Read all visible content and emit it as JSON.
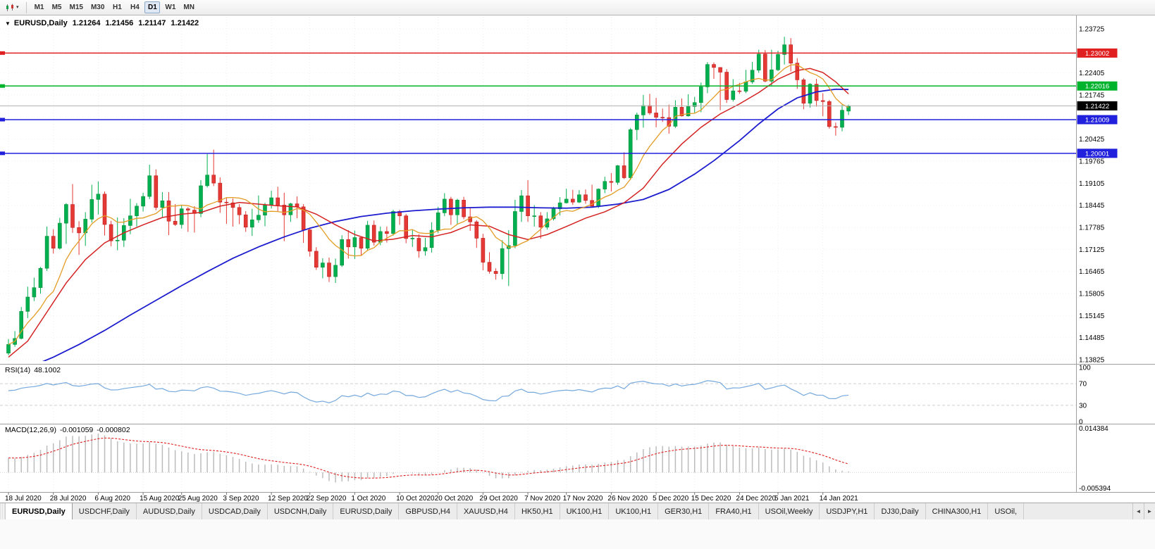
{
  "icons": {
    "collapse_triangle": "▼",
    "toolbar_caret": "▾",
    "tab_scroll_left": "◄",
    "tab_scroll_right": "►"
  },
  "toolbar": {
    "timeframes": [
      "M1",
      "M5",
      "M15",
      "M30",
      "H1",
      "H4",
      "D1",
      "W1",
      "MN"
    ],
    "active_timeframe": "D1"
  },
  "chart": {
    "symbol": "EURUSD,Daily",
    "open": "1.21264",
    "high": "1.21456",
    "low": "1.21147",
    "close": "1.21422"
  },
  "indicators": {
    "rsi": {
      "title": "RSI(14)",
      "value": "48.1002"
    },
    "macd": {
      "title": "MACD(12,26,9)",
      "value_main": "-0.001059",
      "value_signal": "-0.000802"
    }
  },
  "colors": {
    "up_candle": "#00b050",
    "up_stroke": "#089038",
    "down_candle": "#e53935",
    "down_stroke": "#bf2020",
    "ma_fast": "#e39c24",
    "ma_mid": "#d42222",
    "ma_slow": "#1d1dcf",
    "rsi_line": "#76a9dd",
    "macd_bar": "#bcbcbc",
    "macd_signal": "#e02020",
    "grid": "#ededed",
    "separator": "#9f9f9f",
    "axis_text": "#000000",
    "price_line": "#b0b0b0"
  },
  "chart_data": {
    "type": "candlestick",
    "symbol": "EURUSD",
    "timeframe": "Daily",
    "price_axis": {
      "min": 1.13825,
      "max": 1.24,
      "ticks": [
        1.23725,
        1.23065,
        1.22405,
        1.21745,
        1.21085,
        1.20425,
        1.19765,
        1.19105,
        1.18445,
        1.17785,
        1.17125,
        1.16465,
        1.15805,
        1.15145,
        1.14485,
        1.13825
      ]
    },
    "hlines": [
      {
        "price": 1.23002,
        "label": "1.23002",
        "color": "#e02020"
      },
      {
        "price": 1.22016,
        "label": "1.22016",
        "color": "#00b32c"
      },
      {
        "price": 1.21009,
        "label": "1.21009",
        "color": "#2121dd"
      },
      {
        "price": 1.20001,
        "label": "1.20001",
        "color": "#2121dd"
      }
    ],
    "current_price": {
      "price": 1.21422,
      "label": "1.21422",
      "badge_color": "#000000"
    },
    "x_labels": [
      [
        0,
        "18 Jul 2020"
      ],
      [
        7,
        "28 Jul 2020"
      ],
      [
        14,
        "6 Aug 2020"
      ],
      [
        21,
        "15 Aug 2020"
      ],
      [
        27,
        "25 Aug 2020"
      ],
      [
        34,
        "3 Sep 2020"
      ],
      [
        41,
        "12 Sep 2020"
      ],
      [
        47,
        "22 Sep 2020"
      ],
      [
        54,
        "1 Oct 2020"
      ],
      [
        61,
        "10 Oct 2020"
      ],
      [
        67,
        "20 Oct 2020"
      ],
      [
        74,
        "29 Oct 2020"
      ],
      [
        81,
        "7 Nov 2020"
      ],
      [
        87,
        "17 Nov 2020"
      ],
      [
        94,
        "26 Nov 2020"
      ],
      [
        101,
        "5 Dec 2020"
      ],
      [
        107,
        "15 Dec 2020"
      ],
      [
        114,
        "24 Dec 2020"
      ],
      [
        120,
        "5 Jan 2021"
      ],
      [
        127,
        "14 Jan 2021"
      ]
    ],
    "candles": [
      [
        1.1402,
        1.1444,
        1.1396,
        1.1428
      ],
      [
        1.1428,
        1.1468,
        1.1421,
        1.1446
      ],
      [
        1.1446,
        1.154,
        1.1443,
        1.1527
      ],
      [
        1.1527,
        1.1601,
        1.1507,
        1.157
      ],
      [
        1.157,
        1.1628,
        1.1558,
        1.1598
      ],
      [
        1.1598,
        1.166,
        1.158,
        1.1656
      ],
      [
        1.1656,
        1.1781,
        1.1648,
        1.1752
      ],
      [
        1.1752,
        1.1773,
        1.17,
        1.1716
      ],
      [
        1.1716,
        1.1807,
        1.1712,
        1.1791
      ],
      [
        1.1791,
        1.1851,
        1.1729,
        1.1847
      ],
      [
        1.1847,
        1.1908,
        1.1762,
        1.1778
      ],
      [
        1.1778,
        1.1797,
        1.1696,
        1.1762
      ],
      [
        1.1762,
        1.1824,
        1.1723,
        1.1803
      ],
      [
        1.1803,
        1.1906,
        1.1793,
        1.1862
      ],
      [
        1.1862,
        1.1916,
        1.1817,
        1.1878
      ],
      [
        1.1878,
        1.1886,
        1.1754,
        1.1787
      ],
      [
        1.1787,
        1.1798,
        1.1722,
        1.1738
      ],
      [
        1.1738,
        1.1808,
        1.171,
        1.174
      ],
      [
        1.174,
        1.1806,
        1.172,
        1.1784
      ],
      [
        1.1784,
        1.1864,
        1.1758,
        1.1813
      ],
      [
        1.1813,
        1.1851,
        1.1781,
        1.1842
      ],
      [
        1.1842,
        1.1882,
        1.1826,
        1.1871
      ],
      [
        1.1871,
        1.1966,
        1.1863,
        1.1933
      ],
      [
        1.1933,
        1.1952,
        1.183,
        1.1838
      ],
      [
        1.1838,
        1.1884,
        1.1808,
        1.1858
      ],
      [
        1.1858,
        1.1884,
        1.1755,
        1.1797
      ],
      [
        1.1797,
        1.1848,
        1.1783,
        1.1787
      ],
      [
        1.1787,
        1.1845,
        1.1775,
        1.1834
      ],
      [
        1.1834,
        1.1839,
        1.1765,
        1.183
      ],
      [
        1.183,
        1.1842,
        1.1763,
        1.182
      ],
      [
        1.182,
        1.192,
        1.1809,
        1.1903
      ],
      [
        1.1903,
        1.1998,
        1.1898,
        1.1935
      ],
      [
        1.1935,
        1.2011,
        1.1902,
        1.1911
      ],
      [
        1.1911,
        1.1928,
        1.1822,
        1.1854
      ],
      [
        1.1854,
        1.1868,
        1.1789,
        1.1852
      ],
      [
        1.1852,
        1.1865,
        1.1781,
        1.1838
      ],
      [
        1.1838,
        1.1848,
        1.1788,
        1.1816
      ],
      [
        1.1816,
        1.1827,
        1.1765,
        1.1779
      ],
      [
        1.1779,
        1.1834,
        1.1753,
        1.1801
      ],
      [
        1.1801,
        1.1874,
        1.1792,
        1.1815
      ],
      [
        1.1815,
        1.1852,
        1.1782,
        1.1845
      ],
      [
        1.1845,
        1.1888,
        1.1835,
        1.1867
      ],
      [
        1.1867,
        1.19,
        1.1827,
        1.1845
      ],
      [
        1.1845,
        1.1882,
        1.1737,
        1.1816
      ],
      [
        1.1816,
        1.1852,
        1.1795,
        1.1849
      ],
      [
        1.1849,
        1.1871,
        1.1806,
        1.184
      ],
      [
        1.184,
        1.1848,
        1.1732,
        1.1771
      ],
      [
        1.1771,
        1.1778,
        1.1691,
        1.1707
      ],
      [
        1.1707,
        1.1719,
        1.1651,
        1.1659
      ],
      [
        1.1659,
        1.1686,
        1.1626,
        1.1672
      ],
      [
        1.1672,
        1.1688,
        1.1615,
        1.1631
      ],
      [
        1.1631,
        1.1685,
        1.1612,
        1.1665
      ],
      [
        1.1665,
        1.1755,
        1.166,
        1.1742
      ],
      [
        1.1742,
        1.177,
        1.1685,
        1.172
      ],
      [
        1.172,
        1.1769,
        1.1684,
        1.1748
      ],
      [
        1.1748,
        1.175,
        1.1695,
        1.1716
      ],
      [
        1.1716,
        1.1798,
        1.1708,
        1.1785
      ],
      [
        1.1785,
        1.1799,
        1.1724,
        1.1734
      ],
      [
        1.1734,
        1.1781,
        1.1725,
        1.1766
      ],
      [
        1.1766,
        1.1781,
        1.1733,
        1.176
      ],
      [
        1.176,
        1.1831,
        1.1754,
        1.1826
      ],
      [
        1.1826,
        1.1831,
        1.1786,
        1.1813
      ],
      [
        1.1813,
        1.1819,
        1.1731,
        1.1745
      ],
      [
        1.1745,
        1.1772,
        1.172,
        1.1746
      ],
      [
        1.1746,
        1.1758,
        1.1688,
        1.1708
      ],
      [
        1.1708,
        1.1747,
        1.1694,
        1.1718
      ],
      [
        1.1718,
        1.1794,
        1.1703,
        1.177
      ],
      [
        1.177,
        1.184,
        1.1761,
        1.1822
      ],
      [
        1.1822,
        1.1881,
        1.1812,
        1.1863
      ],
      [
        1.1863,
        1.187,
        1.1786,
        1.1816
      ],
      [
        1.1816,
        1.1864,
        1.1787,
        1.186
      ],
      [
        1.186,
        1.187,
        1.1803,
        1.181
      ],
      [
        1.181,
        1.1838,
        1.1768,
        1.1795
      ],
      [
        1.1795,
        1.18,
        1.1717,
        1.1746
      ],
      [
        1.1746,
        1.1759,
        1.165,
        1.1674
      ],
      [
        1.1674,
        1.1704,
        1.164,
        1.1647
      ],
      [
        1.1647,
        1.1656,
        1.1622,
        1.164
      ],
      [
        1.164,
        1.174,
        1.1623,
        1.1715
      ],
      [
        1.1715,
        1.177,
        1.1603,
        1.1724
      ],
      [
        1.1724,
        1.1861,
        1.1716,
        1.1826
      ],
      [
        1.1826,
        1.189,
        1.1795,
        1.1873
      ],
      [
        1.1873,
        1.192,
        1.1795,
        1.1813
      ],
      [
        1.1813,
        1.1845,
        1.1781,
        1.1813
      ],
      [
        1.1813,
        1.1824,
        1.1745,
        1.1779
      ],
      [
        1.1779,
        1.1824,
        1.1772,
        1.1804
      ],
      [
        1.1804,
        1.184,
        1.1799,
        1.1834
      ],
      [
        1.1834,
        1.1869,
        1.1814,
        1.1852
      ],
      [
        1.1852,
        1.1894,
        1.185,
        1.1863
      ],
      [
        1.1863,
        1.1891,
        1.1846,
        1.1854
      ],
      [
        1.1854,
        1.189,
        1.1851,
        1.1876
      ],
      [
        1.1876,
        1.1892,
        1.1849,
        1.1859
      ],
      [
        1.1859,
        1.1906,
        1.1838,
        1.1842
      ],
      [
        1.1842,
        1.1895,
        1.1836,
        1.1893
      ],
      [
        1.1893,
        1.193,
        1.1881,
        1.1916
      ],
      [
        1.1916,
        1.1941,
        1.1886,
        1.1913
      ],
      [
        1.1913,
        1.1965,
        1.1906,
        1.1963
      ],
      [
        1.1963,
        1.2003,
        1.1923,
        1.1927
      ],
      [
        1.1927,
        1.2076,
        1.1921,
        1.2071
      ],
      [
        1.2071,
        1.2122,
        1.204,
        1.2115
      ],
      [
        1.2115,
        1.2175,
        1.2077,
        1.2143
      ],
      [
        1.2143,
        1.2178,
        1.2115,
        1.2121
      ],
      [
        1.2121,
        1.2166,
        1.2078,
        1.2108
      ],
      [
        1.2108,
        1.2134,
        1.2094,
        1.2107
      ],
      [
        1.2107,
        1.2146,
        1.2059,
        1.2081
      ],
      [
        1.2081,
        1.2159,
        1.2076,
        1.2138
      ],
      [
        1.2138,
        1.2164,
        1.211,
        1.2112
      ],
      [
        1.2112,
        1.2177,
        1.211,
        1.214
      ],
      [
        1.214,
        1.2169,
        1.2121,
        1.2152
      ],
      [
        1.2152,
        1.2212,
        1.2123,
        1.2199
      ],
      [
        1.2199,
        1.2273,
        1.218,
        1.2266
      ],
      [
        1.2266,
        1.2272,
        1.2223,
        1.2257
      ],
      [
        1.2257,
        1.2258,
        1.2129,
        1.2243
      ],
      [
        1.2243,
        1.2252,
        1.2151,
        1.2161
      ],
      [
        1.2161,
        1.2222,
        1.2155,
        1.2187
      ],
      [
        1.2187,
        1.2211,
        1.2178,
        1.2186
      ],
      [
        1.2186,
        1.225,
        1.218,
        1.2214
      ],
      [
        1.2214,
        1.2274,
        1.2208,
        1.2249
      ],
      [
        1.2249,
        1.231,
        1.2241,
        1.2297
      ],
      [
        1.2297,
        1.2309,
        1.2213,
        1.2216
      ],
      [
        1.2216,
        1.231,
        1.22,
        1.225
      ],
      [
        1.225,
        1.2307,
        1.2246,
        1.2296
      ],
      [
        1.2296,
        1.2349,
        1.2266,
        1.2325
      ],
      [
        1.2325,
        1.2345,
        1.2245,
        1.227
      ],
      [
        1.227,
        1.2285,
        1.2193,
        1.222
      ],
      [
        1.222,
        1.2225,
        1.2132,
        1.215
      ],
      [
        1.215,
        1.221,
        1.2137,
        1.2207
      ],
      [
        1.2207,
        1.2223,
        1.214,
        1.2158
      ],
      [
        1.2158,
        1.218,
        1.2111,
        1.2155
      ],
      [
        1.2155,
        1.216,
        1.2074,
        1.208
      ],
      [
        1.208,
        1.2092,
        1.2053,
        1.2078
      ],
      [
        1.2078,
        1.2145,
        1.2066,
        1.2129
      ],
      [
        1.21264,
        1.21456,
        1.21147,
        1.21422
      ]
    ],
    "ma_fast_period": 8,
    "ma_mid_points": [
      [
        0,
        1.139
      ],
      [
        3,
        1.1438
      ],
      [
        6,
        1.1525
      ],
      [
        9,
        1.1612
      ],
      [
        12,
        1.1682
      ],
      [
        15,
        1.1732
      ],
      [
        18,
        1.1762
      ],
      [
        21,
        1.1786
      ],
      [
        24,
        1.1808
      ],
      [
        27,
        1.1818
      ],
      [
        30,
        1.1823
      ],
      [
        33,
        1.1842
      ],
      [
        36,
        1.1853
      ],
      [
        39,
        1.1848
      ],
      [
        42,
        1.1843
      ],
      [
        45,
        1.184
      ],
      [
        48,
        1.1818
      ],
      [
        51,
        1.1786
      ],
      [
        54,
        1.1757
      ],
      [
        57,
        1.1738
      ],
      [
        60,
        1.1743
      ],
      [
        63,
        1.1754
      ],
      [
        66,
        1.175
      ],
      [
        69,
        1.1763
      ],
      [
        72,
        1.1786
      ],
      [
        75,
        1.1782
      ],
      [
        78,
        1.1757
      ],
      [
        81,
        1.1742
      ],
      [
        84,
        1.1757
      ],
      [
        87,
        1.1781
      ],
      [
        90,
        1.1806
      ],
      [
        93,
        1.1825
      ],
      [
        96,
        1.1852
      ],
      [
        99,
        1.1896
      ],
      [
        102,
        1.1968
      ],
      [
        105,
        1.2028
      ],
      [
        108,
        1.2078
      ],
      [
        111,
        1.2118
      ],
      [
        114,
        1.2148
      ],
      [
        117,
        1.2182
      ],
      [
        120,
        1.2222
      ],
      [
        123,
        1.2248
      ],
      [
        125,
        1.2254
      ],
      [
        127,
        1.2242
      ],
      [
        129,
        1.2214
      ],
      [
        131,
        1.2178
      ]
    ],
    "ma_slow_points": [
      [
        3,
        1.1358
      ],
      [
        7,
        1.139
      ],
      [
        11,
        1.1428
      ],
      [
        15,
        1.147
      ],
      [
        19,
        1.1516
      ],
      [
        23,
        1.156
      ],
      [
        27,
        1.1604
      ],
      [
        31,
        1.1646
      ],
      [
        35,
        1.1686
      ],
      [
        39,
        1.172
      ],
      [
        43,
        1.175
      ],
      [
        47,
        1.1776
      ],
      [
        51,
        1.1796
      ],
      [
        55,
        1.1811
      ],
      [
        59,
        1.1821
      ],
      [
        63,
        1.1828
      ],
      [
        67,
        1.1833
      ],
      [
        71,
        1.1837
      ],
      [
        75,
        1.1839
      ],
      [
        79,
        1.1839
      ],
      [
        83,
        1.1837
      ],
      [
        87,
        1.1836
      ],
      [
        91,
        1.1839
      ],
      [
        95,
        1.1848
      ],
      [
        99,
        1.1862
      ],
      [
        103,
        1.1892
      ],
      [
        107,
        1.1938
      ],
      [
        110,
        1.1978
      ],
      [
        114,
        1.2038
      ],
      [
        117,
        1.2088
      ],
      [
        120,
        1.2133
      ],
      [
        123,
        1.2166
      ],
      [
        126,
        1.2184
      ],
      [
        129,
        1.2192
      ],
      [
        131,
        1.2191
      ]
    ],
    "rsi": {
      "period": 14,
      "levels": [
        100,
        70,
        30,
        0
      ],
      "last_value": 48.1002
    },
    "macd": {
      "fast": 12,
      "slow": 26,
      "signal": 9,
      "axis_max": "0.014384",
      "axis_min": "-0.005394",
      "last_main": -0.001059,
      "last_signal": -0.000802
    }
  },
  "tabs": {
    "items": [
      "EURUSD,Daily",
      "USDCHF,Daily",
      "AUDUSD,Daily",
      "USDCAD,Daily",
      "USDCNH,Daily",
      "EURUSD,Daily",
      "GBPUSD,H4",
      "XAUUSD,H4",
      "HK50,H1",
      "UK100,H1",
      "UK100,H1",
      "GER30,H1",
      "FRA40,H1",
      "USOil,Weekly",
      "USDJPY,H1",
      "DJ30,Daily",
      "CHINA300,H1",
      "USOil,"
    ],
    "active_index": 0
  }
}
